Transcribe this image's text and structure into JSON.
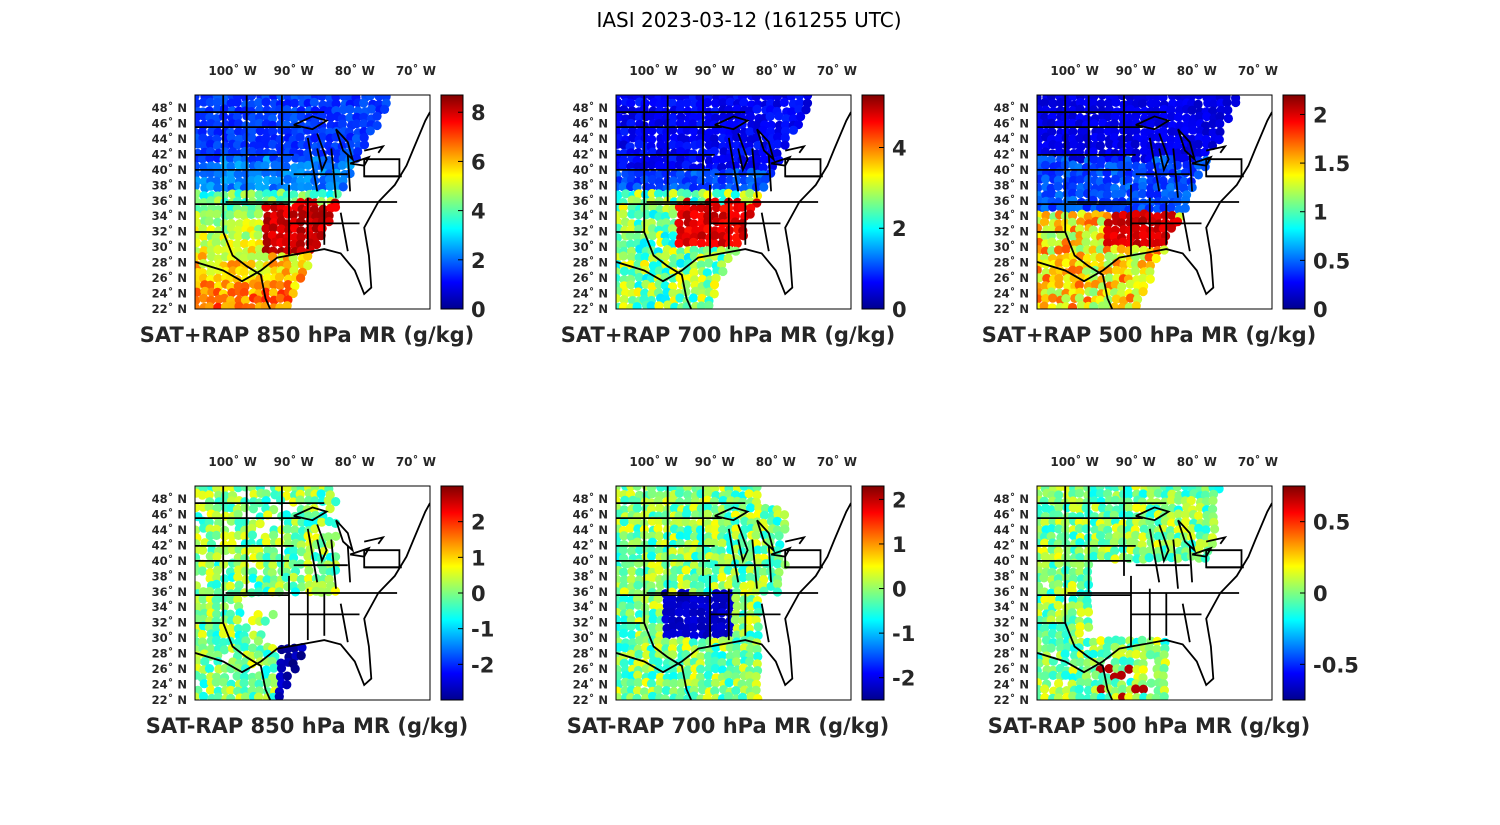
{
  "figure": {
    "title": "IASI 2023-03-12 (161255 UTC)"
  },
  "lon_ticks": [
    "100˚ W",
    "90˚ W",
    "80˚ W",
    "70˚ W"
  ],
  "lat_ticks": [
    "48˚ N",
    "46˚ N",
    "44˚ N",
    "42˚ N",
    "40˚ N",
    "38˚ N",
    "36˚ N",
    "34˚ N",
    "32˚ N",
    "30˚ N",
    "28˚ N",
    "26˚ N",
    "24˚ N",
    "22˚ N"
  ],
  "colormap": "jet",
  "panels": [
    {
      "id": "p1",
      "title": "SAT+RAP 850 hPa MR (g/kg)",
      "clim": [
        0,
        8.7
      ],
      "cbar_ticks": [
        {
          "v": 0,
          "label": "0"
        },
        {
          "v": 2,
          "label": "2"
        },
        {
          "v": 4,
          "label": "4"
        },
        {
          "v": 6,
          "label": "6"
        },
        {
          "v": 8,
          "label": "8"
        }
      ]
    },
    {
      "id": "p2",
      "title": "SAT+RAP 700 hPa MR (g/kg)",
      "clim": [
        0,
        5.3
      ],
      "cbar_ticks": [
        {
          "v": 0,
          "label": "0"
        },
        {
          "v": 2,
          "label": "2"
        },
        {
          "v": 4,
          "label": "4"
        }
      ]
    },
    {
      "id": "p3",
      "title": "SAT+RAP 500 hPa MR (g/kg)",
      "clim": [
        0,
        2.2
      ],
      "cbar_ticks": [
        {
          "v": 0,
          "label": "0"
        },
        {
          "v": 0.5,
          "label": "0.5"
        },
        {
          "v": 1,
          "label": "1"
        },
        {
          "v": 1.5,
          "label": "1.5"
        },
        {
          "v": 2,
          "label": "2"
        }
      ]
    },
    {
      "id": "p4",
      "title": "SAT-RAP 850 hPa MR (g/kg)",
      "clim": [
        -3,
        3
      ],
      "cbar_ticks": [
        {
          "v": -2,
          "label": "-2"
        },
        {
          "v": -1,
          "label": "-1"
        },
        {
          "v": 0,
          "label": "0"
        },
        {
          "v": 1,
          "label": "1"
        },
        {
          "v": 2,
          "label": "2"
        }
      ]
    },
    {
      "id": "p5",
      "title": "SAT-RAP 700 hPa MR (g/kg)",
      "clim": [
        -2.5,
        2.3
      ],
      "cbar_ticks": [
        {
          "v": -2,
          "label": "-2"
        },
        {
          "v": -1,
          "label": "-1"
        },
        {
          "v": 0,
          "label": "0"
        },
        {
          "v": 1,
          "label": "1"
        },
        {
          "v": 2,
          "label": "2"
        }
      ]
    },
    {
      "id": "p6",
      "title": "SAT-RAP 500 hPa MR (g/kg)",
      "clim": [
        -0.75,
        0.75
      ],
      "cbar_ticks": [
        {
          "v": -0.5,
          "label": "-0.5"
        },
        {
          "v": 0,
          "label": "0"
        },
        {
          "v": 0.5,
          "label": "0.5"
        }
      ]
    }
  ]
}
